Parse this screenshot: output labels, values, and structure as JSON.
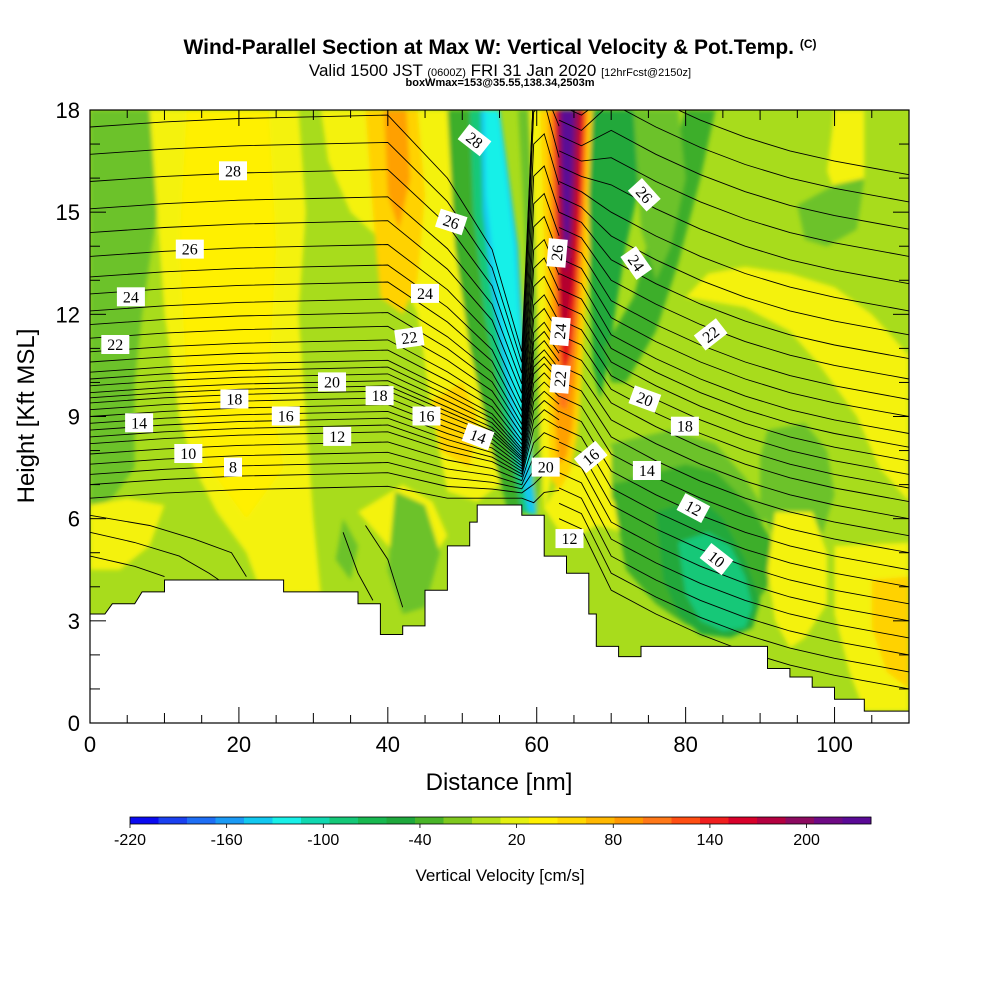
{
  "header": {
    "title": "Wind-Parallel Section at Max W: Vertical Velocity & Pot.Temp.",
    "title_mark": "(C)",
    "subtitle_main": "Valid 1500 JST",
    "subtitle_utc": "(0600Z)",
    "subtitle_date": "FRI 31 Jan 2020",
    "subtitle_fcst": "[12hrFcst@2150z]",
    "subtitle2": "boxWmax=153@35.55,138.34,2503m"
  },
  "chart_data": {
    "type": "heatmap",
    "xlabel": "Distance [nm]",
    "ylabel": "Height [Kft MSL]",
    "xlim": [
      0,
      110
    ],
    "ylim": [
      0,
      18
    ],
    "xticks": [
      0,
      20,
      40,
      60,
      80,
      100
    ],
    "yticks": [
      0,
      3,
      6,
      9,
      12,
      15,
      18
    ],
    "colorbar": {
      "label": "Vertical Velocity [cm/s]",
      "tick_labels": [
        "-220",
        "-160",
        "-100",
        "-40",
        "20",
        "80",
        "140",
        "200"
      ],
      "tick_values": [
        -220,
        -160,
        -100,
        -40,
        20,
        80,
        140,
        200
      ],
      "range": [
        -220,
        240
      ],
      "colors": [
        "#0a0af0",
        "#1a40f0",
        "#1e6ef5",
        "#1a9af5",
        "#12c8f0",
        "#18f0e8",
        "#10d8b0",
        "#14c878",
        "#18b850",
        "#1ea83c",
        "#48b428",
        "#7ec81e",
        "#b4e018",
        "#e4f010",
        "#fff000",
        "#ffd800",
        "#ffb800",
        "#ff9800",
        "#ff7818",
        "#ff4e12",
        "#f01e1e",
        "#d8002a",
        "#b40040",
        "#8c0a60",
        "#6e0a84",
        "#5a0a96"
      ]
    },
    "field_colors": {
      "bg": "#a8dc1c",
      "yellow": "#f4f20c",
      "yellow_light": "#fff000",
      "gold": "#ffd200",
      "orange": "#ffa000",
      "orange_dark": "#ff7818",
      "red": "#e41414",
      "dark_red": "#b4002e",
      "magenta": "#8c0a60",
      "purple": "#5a0a96",
      "green": "#6cc22a",
      "green_mid": "#3cae2a",
      "green_dark": "#22a83a",
      "teal": "#14c878",
      "cyan": "#18f0e8",
      "cyan_dark": "#12c8f0"
    },
    "terrain": [
      [
        0,
        3.2
      ],
      [
        2,
        3.2
      ],
      [
        3,
        3.5
      ],
      [
        6,
        3.5
      ],
      [
        7,
        3.85
      ],
      [
        10,
        3.85
      ],
      [
        10,
        4.2
      ],
      [
        26,
        4.2
      ],
      [
        26,
        3.85
      ],
      [
        36,
        3.85
      ],
      [
        36,
        3.5
      ],
      [
        39,
        3.5
      ],
      [
        39,
        2.6
      ],
      [
        42,
        2.6
      ],
      [
        42,
        2.85
      ],
      [
        45,
        2.85
      ],
      [
        45,
        3.9
      ],
      [
        48,
        3.9
      ],
      [
        48,
        5.2
      ],
      [
        51,
        5.2
      ],
      [
        51,
        5.9
      ],
      [
        52,
        5.9
      ],
      [
        52,
        6.4
      ],
      [
        58,
        6.4
      ],
      [
        58,
        6.1
      ],
      [
        61,
        6.1
      ],
      [
        61,
        4.9
      ],
      [
        64,
        4.9
      ],
      [
        64,
        4.4
      ],
      [
        67,
        4.4
      ],
      [
        67,
        3.2
      ],
      [
        68,
        3.2
      ],
      [
        68,
        2.25
      ],
      [
        71,
        2.25
      ],
      [
        71,
        1.95
      ],
      [
        74,
        1.95
      ],
      [
        74,
        2.25
      ],
      [
        91,
        2.25
      ],
      [
        91,
        1.6
      ],
      [
        94,
        1.6
      ],
      [
        94,
        1.35
      ],
      [
        97,
        1.35
      ],
      [
        97,
        1.05
      ],
      [
        100,
        1.05
      ],
      [
        100,
        0.7
      ],
      [
        104,
        0.7
      ],
      [
        104,
        0.35
      ],
      [
        110,
        0.35
      ]
    ],
    "contour_labels": [
      {
        "text": "28",
        "x": 19.2,
        "y": 16.2,
        "rot": 0
      },
      {
        "text": "26",
        "x": 13.4,
        "y": 13.9,
        "rot": 0
      },
      {
        "text": "24",
        "x": 5.5,
        "y": 12.5,
        "rot": 0
      },
      {
        "text": "22",
        "x": 3.4,
        "y": 11.1,
        "rot": 0
      },
      {
        "text": "14",
        "x": 6.6,
        "y": 8.8,
        "rot": 0
      },
      {
        "text": "18",
        "x": 19.4,
        "y": 9.5,
        "rot": 0
      },
      {
        "text": "16",
        "x": 26.3,
        "y": 9.0,
        "rot": 0
      },
      {
        "text": "20",
        "x": 32.5,
        "y": 10.0,
        "rot": 0
      },
      {
        "text": "18",
        "x": 38.9,
        "y": 9.6,
        "rot": 0
      },
      {
        "text": "22",
        "x": 42.9,
        "y": 11.3,
        "rot": -8
      },
      {
        "text": "24",
        "x": 45.0,
        "y": 12.6,
        "rot": 0
      },
      {
        "text": "26",
        "x": 48.5,
        "y": 14.7,
        "rot": 18
      },
      {
        "text": "28",
        "x": 51.6,
        "y": 17.1,
        "rot": 38
      },
      {
        "text": "12",
        "x": 33.2,
        "y": 8.4,
        "rot": 0
      },
      {
        "text": "10",
        "x": 13.2,
        "y": 7.9,
        "rot": 0
      },
      {
        "text": "8",
        "x": 19.2,
        "y": 7.5,
        "rot": 0
      },
      {
        "text": "16",
        "x": 45.2,
        "y": 9.0,
        "rot": 0
      },
      {
        "text": "14",
        "x": 52.1,
        "y": 8.4,
        "rot": 20
      },
      {
        "text": "20",
        "x": 61.2,
        "y": 7.5,
        "rot": 0
      },
      {
        "text": "22",
        "x": 63.2,
        "y": 10.1,
        "rot": -85
      },
      {
        "text": "24",
        "x": 63.2,
        "y": 11.5,
        "rot": -85
      },
      {
        "text": "26",
        "x": 62.8,
        "y": 13.8,
        "rot": -85
      },
      {
        "text": "16",
        "x": 67.3,
        "y": 7.8,
        "rot": -40
      },
      {
        "text": "12",
        "x": 64.4,
        "y": 5.4,
        "rot": 0
      },
      {
        "text": "14",
        "x": 74.8,
        "y": 7.4,
        "rot": 0
      },
      {
        "text": "20",
        "x": 74.5,
        "y": 9.5,
        "rot": 20
      },
      {
        "text": "18",
        "x": 79.9,
        "y": 8.7,
        "rot": 0
      },
      {
        "text": "12",
        "x": 81.0,
        "y": 6.3,
        "rot": 28
      },
      {
        "text": "10",
        "x": 84.1,
        "y": 4.8,
        "rot": 38
      },
      {
        "text": "22",
        "x": 83.4,
        "y": 11.4,
        "rot": -38
      },
      {
        "text": "24",
        "x": 73.3,
        "y": 13.5,
        "rot": 55
      },
      {
        "text": "26",
        "x": 74.4,
        "y": 15.5,
        "rot": 48
      }
    ]
  }
}
